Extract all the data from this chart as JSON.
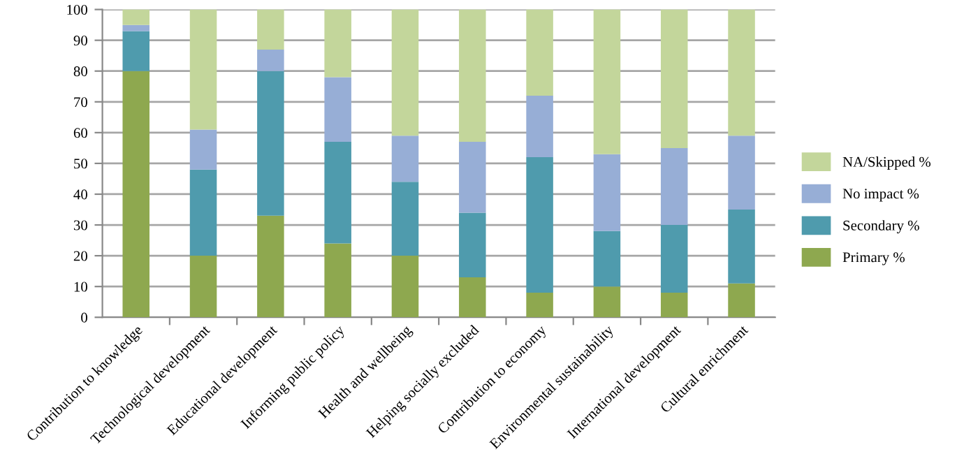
{
  "chart_data": {
    "type": "bar",
    "stacked": true,
    "categories": [
      "Contribution to knowledge",
      "Technological development",
      "Educational development",
      "Informing public policy",
      "Health and wellbeing",
      "Helping socially excluded",
      "Contribution to economy",
      "Environmental sustainability",
      "International development",
      "Cultural enrichment"
    ],
    "series": [
      {
        "name": "Primary %",
        "color": "#8ea84f",
        "values": [
          80,
          20,
          33,
          24,
          20,
          13,
          8,
          10,
          8,
          11
        ]
      },
      {
        "name": "Secondary %",
        "color": "#4f9bad",
        "values": [
          13,
          28,
          47,
          33,
          24,
          21,
          44,
          18,
          22,
          24
        ]
      },
      {
        "name": "No impact %",
        "color": "#97aed6",
        "values": [
          2,
          13,
          7,
          21,
          15,
          23,
          20,
          25,
          25,
          24
        ]
      },
      {
        "name": "NA/Skipped %",
        "color": "#c3d69b",
        "values": [
          5,
          39,
          13,
          22,
          41,
          43,
          28,
          47,
          45,
          41
        ]
      }
    ],
    "ylim": [
      0,
      100
    ],
    "yticks": [
      0,
      10,
      20,
      30,
      40,
      50,
      60,
      70,
      80,
      90,
      100
    ],
    "grid": "y",
    "legend": "right"
  }
}
